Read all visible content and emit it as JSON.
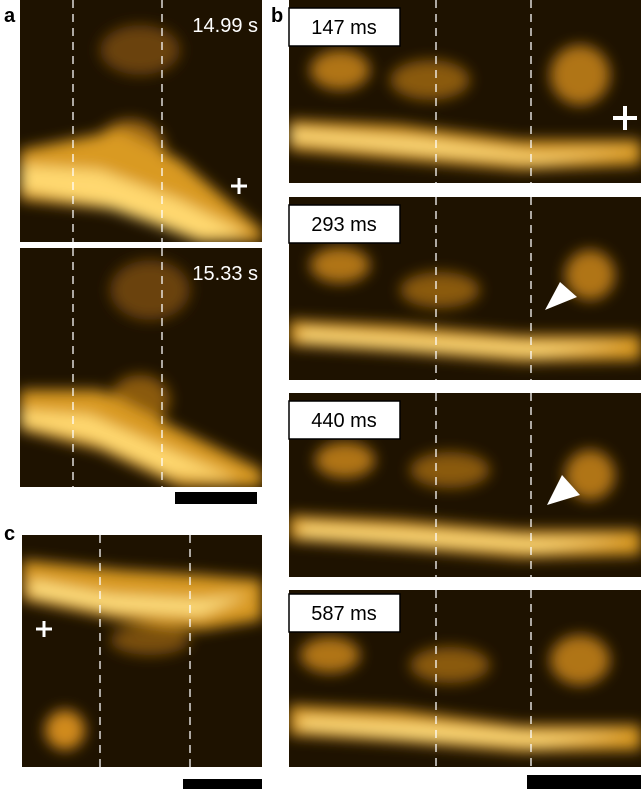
{
  "panel_a": {
    "label": "a",
    "frames": [
      {
        "time": "14.99 s"
      },
      {
        "time": "15.33 s"
      }
    ]
  },
  "panel_b": {
    "label": "b",
    "frames": [
      {
        "time": "147 ms"
      },
      {
        "time": "293 ms"
      },
      {
        "time": "440 ms"
      },
      {
        "time": "587 ms"
      }
    ]
  },
  "panel_c": {
    "label": "c"
  }
}
